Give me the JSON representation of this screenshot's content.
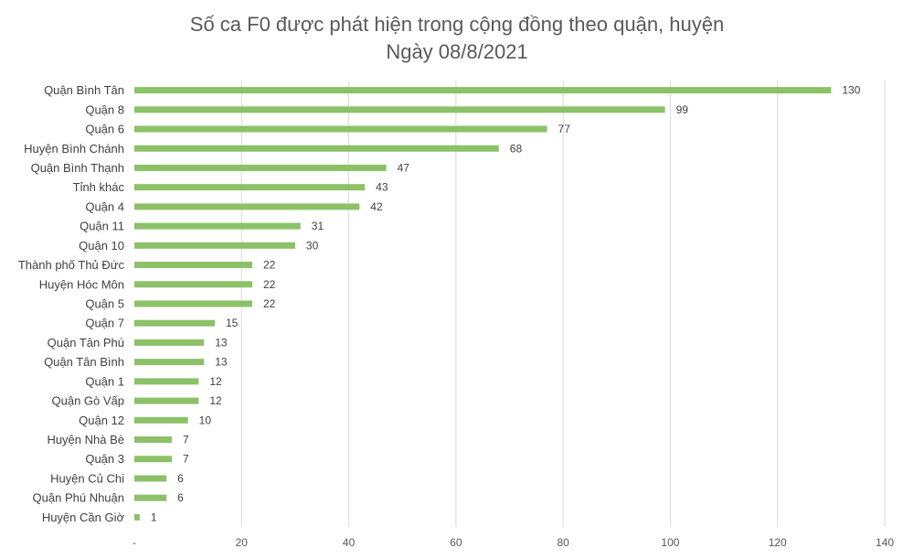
{
  "chart_data": {
    "type": "bar",
    "orientation": "horizontal",
    "title": "Số ca F0 được phát hiện trong cộng đồng theo quận, huyện",
    "subtitle": "Ngày 08/8/2021",
    "categories": [
      "Quận Bình Tân",
      "Quận 8",
      "Quận 6",
      "Huyện Bình Chánh",
      "Quận Bình Thạnh",
      "Tỉnh khác",
      "Quận 4",
      "Quận 11",
      "Quận 10",
      "Thành phố Thủ Đức",
      "Huyện Hóc Môn",
      "Quận 5",
      "Quận 7",
      "Quận Tân Phú",
      "Quận Tân Bình",
      "Quận 1",
      "Quận Gò Vấp",
      "Quận 12",
      "Huyện Nhà Bè",
      "Quận 3",
      "Huyện Củ Chi",
      "Quận Phú Nhuận",
      "Huyện Cần Giờ"
    ],
    "values": [
      130,
      99,
      77,
      68,
      47,
      43,
      42,
      31,
      30,
      22,
      22,
      22,
      15,
      13,
      13,
      12,
      12,
      10,
      7,
      7,
      6,
      6,
      1
    ],
    "xlim": [
      0,
      140
    ],
    "x_ticks": [
      0,
      20,
      40,
      60,
      80,
      100,
      120,
      140
    ],
    "x_tick_labels": [
      "-",
      "20",
      "40",
      "60",
      "80",
      "100",
      "120",
      "140"
    ],
    "grid": "vertical",
    "legend": "none",
    "bar_color": "#8cc168"
  }
}
